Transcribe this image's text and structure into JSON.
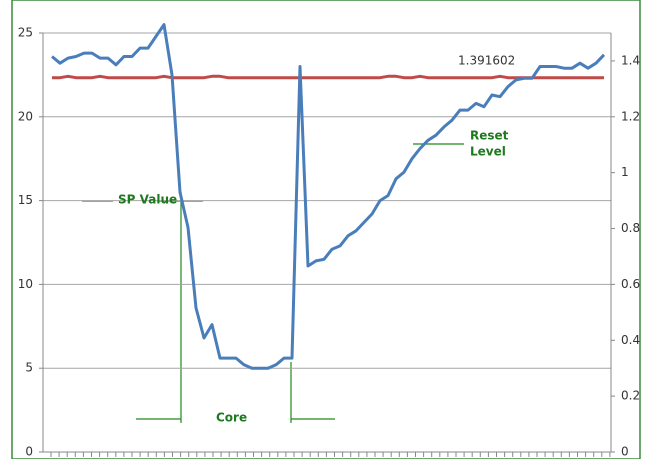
{
  "chart_data": {
    "type": "line",
    "annotations": [
      "1.391602",
      "SP Value",
      "Reset",
      "Level",
      "Core"
    ],
    "ylim": [
      0,
      25
    ],
    "yticks": [
      0,
      5,
      10,
      15,
      20,
      25
    ],
    "y2lim": [
      0,
      1.5
    ],
    "y2ticks": [
      0,
      0.2,
      0.4,
      0.6,
      0.8,
      1,
      1.2,
      1.4
    ],
    "grid": true,
    "series": [
      {
        "color": "#4a7ebb",
        "values": [
          23.6,
          23.2,
          23.5,
          23.6,
          23.8,
          23.8,
          23.5,
          23.5,
          23.1,
          23.6,
          23.6,
          24.1,
          24.1,
          24.8,
          25.5,
          22.5,
          15.5,
          13.4,
          8.6,
          6.8,
          7.6,
          5.6,
          5.6,
          5.6,
          5.2,
          5.0,
          5.0,
          5.0,
          5.2,
          5.6,
          5.6,
          23.0,
          11.1,
          11.4,
          11.5,
          12.1,
          12.3,
          12.9,
          13.2,
          13.7,
          14.2,
          15.0,
          15.3,
          16.3,
          16.7,
          17.5,
          18.1,
          18.6,
          18.9,
          19.4,
          19.8,
          20.4,
          20.4,
          20.8,
          20.6,
          21.3,
          21.2,
          21.8,
          22.2,
          22.3,
          22.3,
          23.0,
          23.0,
          23.0,
          22.9,
          22.9,
          23.2,
          22.9,
          23.2,
          23.7
        ]
      },
      {
        "color": "#be4b48",
        "axis": "y2",
        "values": [
          1.34,
          1.34,
          1.345,
          1.34,
          1.34,
          1.34,
          1.345,
          1.34,
          1.34,
          1.34,
          1.34,
          1.34,
          1.34,
          1.34,
          1.345,
          1.34,
          1.34,
          1.34,
          1.34,
          1.34,
          1.345,
          1.345,
          1.34,
          1.34,
          1.34,
          1.34,
          1.34,
          1.34,
          1.34,
          1.34,
          1.34,
          1.34,
          1.34,
          1.34,
          1.34,
          1.34,
          1.34,
          1.34,
          1.34,
          1.34,
          1.34,
          1.34,
          1.345,
          1.345,
          1.34,
          1.34,
          1.345,
          1.34,
          1.34,
          1.34,
          1.34,
          1.34,
          1.34,
          1.34,
          1.34,
          1.34,
          1.345,
          1.34,
          1.34,
          1.34,
          1.34,
          1.34,
          1.34,
          1.34,
          1.34,
          1.34,
          1.34,
          1.34,
          1.34,
          1.34
        ]
      }
    ]
  }
}
